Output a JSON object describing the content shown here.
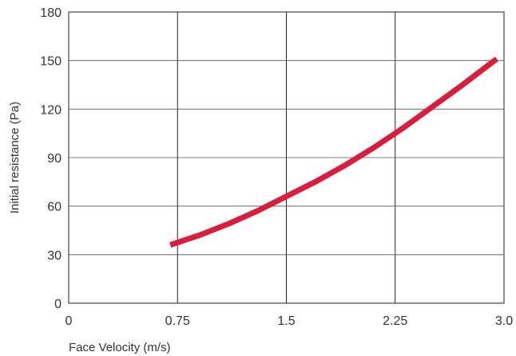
{
  "chart_data": {
    "type": "line",
    "title": "",
    "xlabel": "Face Velocity (m/s)",
    "ylabel": "Initial resistance (Pa)",
    "xlim": [
      0,
      3.0
    ],
    "ylim": [
      0,
      180
    ],
    "x_ticks": [
      "0",
      "0.75",
      "1.5",
      "2.25",
      "3.0"
    ],
    "y_ticks": [
      "0",
      "30",
      "60",
      "90",
      "120",
      "150",
      "180"
    ],
    "grid": {
      "vertical": true,
      "horizontal": true
    },
    "legend": "none",
    "series": [
      {
        "color": "#d81e3c",
        "x": [
          0.7,
          0.9,
          1.1,
          1.3,
          1.5,
          1.7,
          1.9,
          2.1,
          2.3,
          2.5,
          2.7,
          2.95
        ],
        "y": [
          36,
          42,
          49,
          57,
          66,
          75,
          85,
          96,
          108,
          121,
          134,
          151
        ]
      }
    ]
  }
}
